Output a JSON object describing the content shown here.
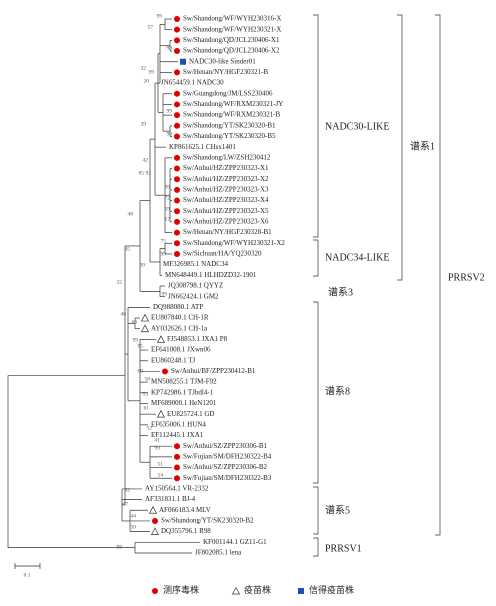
{
  "leaves": [
    {
      "label": "Sw/Shandong/WF/WYH230316-X",
      "color": "#e00000"
    },
    {
      "label": "Sw/Shandong/WF/WYH230321-X",
      "color": "#e00000"
    },
    {
      "label": "Sw/Shandong/QD/JCL230406-X1",
      "color": "#e00000"
    },
    {
      "label": "Sw/Shandong/QD/JCL230406-X2",
      "color": "#e00000"
    },
    {
      "label": "NADC30-like Sinder01",
      "color": "#1f4fb0"
    },
    {
      "label": "Sw/Henan/NY/HGF230321-B",
      "color": "#e00000"
    },
    {
      "label": "JN654459.1 NADC30",
      "color": null
    },
    {
      "label": "Sw/Guangdong/JM/LSS230406",
      "color": "#e00000"
    },
    {
      "label": "Sw/Shandong/WF/RXM230321-JY",
      "color": "#e00000"
    },
    {
      "label": "Sw/Shandong/WF/RXM230321-B",
      "color": "#e00000"
    },
    {
      "label": "Sw/Shandong/YT/SK230320-B1",
      "color": "#e00000"
    },
    {
      "label": "Sw/Shandong/YT/SK230320-B5",
      "color": "#e00000"
    },
    {
      "label": "KP861625.1 CHsx1401",
      "color": null
    },
    {
      "label": "Sw/Shandong/LW/ZSH230412",
      "color": "#e00000"
    },
    {
      "label": "Sw/Anhui/HZ/ZPP230323-X1",
      "color": "#e00000"
    },
    {
      "label": "Sw/Anhui/HZ/ZPP230323-X2",
      "color": "#e00000"
    },
    {
      "label": "Sw/Anhui/HZ/ZPP230323-X3",
      "color": "#e00000"
    },
    {
      "label": "Sw/Anhui/HZ/ZPP230323-X4",
      "color": "#e00000"
    },
    {
      "label": "Sw/Anhui/HZ/ZPP230323-X5",
      "color": "#e00000"
    },
    {
      "label": "Sw/Anhui/HZ/ZPP230323-X6",
      "color": "#e00000"
    },
    {
      "label": "Sw/Henan/NY/HGF230328-B1",
      "color": "#e00000"
    },
    {
      "label": "Sw/Shandong/WF/WYH230321-X2",
      "color": "#e00000"
    },
    {
      "label": "Sw/Sichuan/HA/YQ230320",
      "color": "#e00000"
    },
    {
      "label": "MF326985.1 NADC34",
      "color": null
    },
    {
      "label": "MN648449.1 HLHDZD32-1901",
      "color": null
    },
    {
      "label": "JQ308798.1 QYYZ",
      "color": null
    },
    {
      "label": "JN662424.1 GM2",
      "color": null
    },
    {
      "label": "DQ988080.1 ATP",
      "color": null
    },
    {
      "label": "EU807840.1 CH-1R",
      "color": "#4cc23a"
    },
    {
      "label": "AY032626.1 CH-1a",
      "color": "#4cc23a"
    },
    {
      "label": "FJ548853.1 JXA1 P8",
      "color": "#4cc23a"
    },
    {
      "label": "EF641008.1 JXwn06",
      "color": null
    },
    {
      "label": "EU860248.1 TJ",
      "color": null
    },
    {
      "label": "Sw/Anhui/BF/ZPP230412-B1",
      "color": "#e00000"
    },
    {
      "label": "MN508255.1 TJM-F92",
      "color": null
    },
    {
      "label": "KP742986.1 TJbdl4-1",
      "color": null
    },
    {
      "label": "MF689000.1 HeN1201",
      "color": null
    },
    {
      "label": "EU825724.1 GD",
      "color": "#4cc23a"
    },
    {
      "label": "EF635006.1 HUN4",
      "color": null
    },
    {
      "label": "EF112445.1 JXA1",
      "color": null
    },
    {
      "label": "Sw/Anhui/SZ/ZPP230306-B1",
      "color": "#e00000"
    },
    {
      "label": "Sw/Fujian/SM/DFH230322-B4",
      "color": "#e00000"
    },
    {
      "label": "Sw/Anhui/SZ/ZPP230306-B2",
      "color": "#e00000"
    },
    {
      "label": "Sw/Fujian/SM/DFH230322-B3",
      "color": "#e00000"
    },
    {
      "label": "AY150564.1 VR-2332",
      "color": null
    },
    {
      "label": "AF331831.1 BJ-4",
      "color": null
    },
    {
      "label": "AF066183.4 MLV",
      "color": "#4cc23a"
    },
    {
      "label": "Sw/Shandong/YT/SK230320-B2",
      "color": "#e00000"
    },
    {
      "label": "DQ355796.1 R98",
      "color": "#4cc23a"
    },
    {
      "label": "KF001144.1 GZ11-G1",
      "color": null
    },
    {
      "label": "JF802085.1 lena",
      "color": null
    }
  ],
  "bootstrap": [
    99,
    57,
    99,
    32,
    99,
    20,
    99,
    39,
    99,
    42,
    85,
    93,
    99,
    72,
    59,
    17,
    48,
    75,
    99,
    45,
    99,
    22,
    99,
    46,
    66,
    85,
    99,
    53,
    60,
    58,
    61,
    52,
    41,
    99,
    51,
    54,
    67,
    62,
    44,
    50,
    99
  ],
  "clades": [
    "NADC30-LIKE",
    "NADC34-LIKE",
    "谱系1",
    "谱系3",
    "谱系8",
    "谱系5",
    "PRRSV1",
    "PRRSV2"
  ],
  "scale": "0.1",
  "legend": [
    {
      "label": "测序毒株",
      "color": "#e00000",
      "shape": "circle"
    },
    {
      "label": "疫苗株",
      "color": "#4cc23a",
      "shape": "triangle"
    },
    {
      "label": "信得疫苗株",
      "color": "#1f4fb0",
      "shape": "square"
    }
  ]
}
